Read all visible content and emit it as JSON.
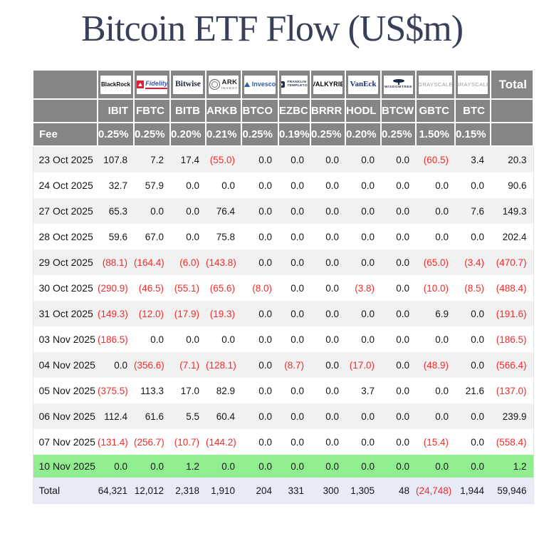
{
  "title": "Bitcoin ETF Flow (US$m)",
  "colors": {
    "title_navy": "#3a3f58",
    "header_gray": "#858585",
    "negative_red": "#f22b2b",
    "highlight_green": "#90ee90",
    "total_row_blue": "#e7ebf8",
    "stripe_gray": "#f1f1f1"
  },
  "chart_data": {
    "type": "table",
    "title": "Bitcoin ETF Flow (US$m)",
    "providers": [
      {
        "id": "blackrock",
        "name": "BlackRock"
      },
      {
        "id": "fidelity",
        "name": "Fidelity",
        "icon": "fidelity-pyramid-icon"
      },
      {
        "id": "bitwise",
        "name": "Bitwise"
      },
      {
        "id": "ark",
        "name": "ARK",
        "sub": "INVEST",
        "icon": "ark-circle-icon"
      },
      {
        "id": "invesco",
        "name": "Invesco",
        "icon": "invesco-triangle-icon"
      },
      {
        "id": "franklin",
        "name": "FRANKLIN",
        "sub": "TEMPLETON",
        "icon": "franklin-bell-icon"
      },
      {
        "id": "valkyrie",
        "name": "VALKYRIE"
      },
      {
        "id": "vaneck",
        "name": "VanEck"
      },
      {
        "id": "wisdomtree",
        "name": "WISDOMTREE",
        "icon": "wisdomtree-tree-icon"
      },
      {
        "id": "grayscale",
        "name": "GRAYSCALE"
      },
      {
        "id": "grayscale2",
        "name": "GRAYSCALE"
      }
    ],
    "tickers": [
      "IBIT",
      "FBTC",
      "BITB",
      "ARKB",
      "BTCO",
      "EZBC",
      "BRRR",
      "HODL",
      "BTCW",
      "GBTC",
      "BTC"
    ],
    "fee_label": "Fee",
    "fees": [
      "0.25%",
      "0.25%",
      "0.20%",
      "0.21%",
      "0.25%",
      "0.19%",
      "0.25%",
      "0.20%",
      "0.25%",
      "1.50%",
      "0.15%"
    ],
    "total_column_label": "Total",
    "rows": [
      {
        "date": "23 Oct 2025",
        "values": [
          "107.8",
          "7.2",
          "17.4",
          "(55.0)",
          "0.0",
          "0.0",
          "0.0",
          "0.0",
          "0.0",
          "(60.5)",
          "3.4"
        ],
        "total": "20.3"
      },
      {
        "date": "24 Oct 2025",
        "values": [
          "32.7",
          "57.9",
          "0.0",
          "0.0",
          "0.0",
          "0.0",
          "0.0",
          "0.0",
          "0.0",
          "0.0",
          "0.0"
        ],
        "total": "90.6"
      },
      {
        "date": "27 Oct 2025",
        "values": [
          "65.3",
          "0.0",
          "0.0",
          "76.4",
          "0.0",
          "0.0",
          "0.0",
          "0.0",
          "0.0",
          "0.0",
          "7.6"
        ],
        "total": "149.3"
      },
      {
        "date": "28 Oct 2025",
        "values": [
          "59.6",
          "67.0",
          "0.0",
          "75.8",
          "0.0",
          "0.0",
          "0.0",
          "0.0",
          "0.0",
          "0.0",
          "0.0"
        ],
        "total": "202.4"
      },
      {
        "date": "29 Oct 2025",
        "values": [
          "(88.1)",
          "(164.4)",
          "(6.0)",
          "(143.8)",
          "0.0",
          "0.0",
          "0.0",
          "0.0",
          "0.0",
          "(65.0)",
          "(3.4)"
        ],
        "total": "(470.7)"
      },
      {
        "date": "30 Oct 2025",
        "values": [
          "(290.9)",
          "(46.5)",
          "(55.1)",
          "(65.6)",
          "(8.0)",
          "0.0",
          "0.0",
          "(3.8)",
          "0.0",
          "(10.0)",
          "(8.5)"
        ],
        "total": "(488.4)"
      },
      {
        "date": "31 Oct 2025",
        "values": [
          "(149.3)",
          "(12.0)",
          "(17.9)",
          "(19.3)",
          "0.0",
          "0.0",
          "0.0",
          "0.0",
          "0.0",
          "6.9",
          "0.0"
        ],
        "total": "(191.6)"
      },
      {
        "date": "03 Nov 2025",
        "values": [
          "(186.5)",
          "0.0",
          "0.0",
          "0.0",
          "0.0",
          "0.0",
          "0.0",
          "0.0",
          "0.0",
          "0.0",
          "0.0"
        ],
        "total": "(186.5)"
      },
      {
        "date": "04 Nov 2025",
        "values": [
          "0.0",
          "(356.6)",
          "(7.1)",
          "(128.1)",
          "0.0",
          "(8.7)",
          "0.0",
          "(17.0)",
          "0.0",
          "(48.9)",
          "0.0"
        ],
        "total": "(566.4)"
      },
      {
        "date": "05 Nov 2025",
        "values": [
          "(375.5)",
          "113.3",
          "17.0",
          "82.9",
          "0.0",
          "0.0",
          "0.0",
          "3.7",
          "0.0",
          "0.0",
          "21.6"
        ],
        "total": "(137.0)"
      },
      {
        "date": "06 Nov 2025",
        "values": [
          "112.4",
          "61.6",
          "5.5",
          "60.4",
          "0.0",
          "0.0",
          "0.0",
          "0.0",
          "0.0",
          "0.0",
          "0.0"
        ],
        "total": "239.9"
      },
      {
        "date": "07 Nov 2025",
        "values": [
          "(131.4)",
          "(256.7)",
          "(10.7)",
          "(144.2)",
          "0.0",
          "0.0",
          "0.0",
          "0.0",
          "0.0",
          "(15.4)",
          "0.0"
        ],
        "total": "(558.4)"
      },
      {
        "date": "10 Nov 2025",
        "values": [
          "0.0",
          "0.0",
          "1.2",
          "0.0",
          "0.0",
          "0.0",
          "0.0",
          "0.0",
          "0.0",
          "0.0",
          "0.0"
        ],
        "total": "1.2",
        "highlight": "green"
      }
    ],
    "total_row": {
      "label": "Total",
      "values": [
        "64,321",
        "12,012",
        "2,318",
        "1,910",
        "204",
        "331",
        "300",
        "1,305",
        "48",
        "(24,748)",
        "1,944"
      ],
      "total": "59,946"
    }
  }
}
